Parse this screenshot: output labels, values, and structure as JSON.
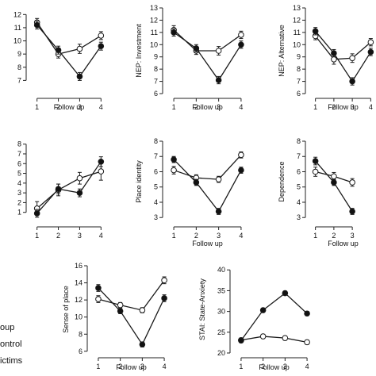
{
  "chart_data": [
    {
      "type": "line",
      "x": [
        1,
        2,
        3,
        4
      ],
      "xlabel": "Follow up",
      "ylabel": "",
      "xticks": [
        "1",
        "2",
        "3",
        "4"
      ],
      "yticks": [
        "7",
        "8",
        "9",
        "10",
        "11",
        "12"
      ],
      "ylim": [
        6,
        12.5
      ],
      "series": [
        {
          "name": "Control",
          "values": [
            11.4,
            9.0,
            9.4,
            10.4
          ],
          "err": [
            0.3,
            0.3,
            0.35,
            0.3
          ]
        },
        {
          "name": "Victims",
          "values": [
            11.2,
            9.3,
            7.3,
            9.6
          ],
          "err": [
            0.3,
            0.3,
            0.3,
            0.3
          ]
        }
      ]
    },
    {
      "type": "line",
      "x": [
        1,
        2,
        3,
        4
      ],
      "xlabel": "Follow up",
      "ylabel": "NEP: Investment",
      "xticks": [
        "1",
        "2",
        "3",
        "4"
      ],
      "yticks": [
        "6",
        "7",
        "8",
        "9",
        "10",
        "11",
        "12",
        "13"
      ],
      "ylim": [
        6,
        13
      ],
      "series": [
        {
          "name": "Control",
          "values": [
            11.2,
            9.5,
            9.5,
            10.8
          ],
          "err": [
            0.35,
            0.3,
            0.35,
            0.3
          ]
        },
        {
          "name": "Victims",
          "values": [
            11.0,
            9.7,
            7.1,
            10.0
          ],
          "err": [
            0.3,
            0.3,
            0.3,
            0.3
          ]
        }
      ]
    },
    {
      "type": "line",
      "x": [
        1,
        2,
        3,
        4
      ],
      "xlabel": "Follow up",
      "ylabel": "NEP: Alternative",
      "xticks": [
        "1",
        "2",
        "3",
        "4"
      ],
      "yticks": [
        "6",
        "7",
        "8",
        "9",
        "10",
        "11",
        "12",
        "13"
      ],
      "ylim": [
        6,
        13
      ],
      "series": [
        {
          "name": "Control",
          "values": [
            10.7,
            8.8,
            8.9,
            10.2
          ],
          "err": [
            0.3,
            0.4,
            0.35,
            0.3
          ]
        },
        {
          "name": "Victims",
          "values": [
            11.1,
            9.3,
            7.0,
            9.4
          ],
          "err": [
            0.3,
            0.3,
            0.3,
            0.3
          ]
        }
      ]
    },
    {
      "type": "line",
      "x": [
        1,
        2,
        3,
        4
      ],
      "xlabel": "",
      "ylabel": "",
      "xticks": [
        "1",
        "2",
        "3",
        "4"
      ],
      "yticks": [
        "1",
        "2",
        "3",
        "4",
        "5",
        "6",
        "7",
        "8"
      ],
      "ylim": [
        0,
        8.3
      ],
      "series": [
        {
          "name": "Control",
          "values": [
            1.4,
            3.3,
            4.5,
            5.2
          ],
          "err": [
            0.7,
            0.6,
            0.6,
            0.9
          ]
        },
        {
          "name": "Victims",
          "values": [
            0.9,
            3.4,
            3.0,
            6.2
          ],
          "err": [
            0.4,
            0.5,
            0.4,
            0.5
          ]
        }
      ]
    },
    {
      "type": "line",
      "x": [
        1,
        2,
        3,
        4
      ],
      "xlabel": "Follow up",
      "ylabel": "Place identity",
      "xticks": [
        "1",
        "2",
        "3",
        "4"
      ],
      "yticks": [
        "3",
        "4",
        "5",
        "6",
        "7",
        "8"
      ],
      "ylim": [
        2.7,
        8
      ],
      "series": [
        {
          "name": "Control",
          "values": [
            6.1,
            5.6,
            5.5,
            7.1
          ],
          "err": [
            0.25,
            0.2,
            0.2,
            0.2
          ]
        },
        {
          "name": "Victims",
          "values": [
            6.8,
            5.3,
            3.4,
            6.1
          ],
          "err": [
            0.2,
            0.2,
            0.2,
            0.2
          ]
        }
      ]
    },
    {
      "type": "line",
      "x": [
        1,
        2,
        3
      ],
      "xlabel": "Follow up",
      "ylabel": "Dependence",
      "xticks": [
        "1",
        "2",
        "3"
      ],
      "yticks": [
        "3",
        "4",
        "5",
        "6",
        "7",
        "8"
      ],
      "ylim": [
        2.7,
        8
      ],
      "series": [
        {
          "name": "Control",
          "values": [
            6.0,
            5.7,
            5.3
          ],
          "err": [
            0.3,
            0.25,
            0.25
          ]
        },
        {
          "name": "Victims",
          "values": [
            6.7,
            5.3,
            3.4
          ],
          "err": [
            0.25,
            0.2,
            0.2
          ]
        }
      ]
    },
    {
      "type": "line",
      "x": [
        1,
        2,
        3,
        4
      ],
      "xlabel": "Follow up",
      "ylabel": "Sense of place",
      "xticks": [
        "1",
        "2",
        "3",
        "4"
      ],
      "yticks": [
        "6",
        "8",
        "10",
        "12",
        "14",
        "16"
      ],
      "ylim": [
        5.8,
        16
      ],
      "series": [
        {
          "name": "Control",
          "values": [
            12.1,
            11.4,
            10.8,
            14.3
          ],
          "err": [
            0.4,
            0.3,
            0.3,
            0.4
          ]
        },
        {
          "name": "Victims",
          "values": [
            13.4,
            10.7,
            6.8,
            12.2
          ],
          "err": [
            0.4,
            0.3,
            0.3,
            0.4
          ]
        }
      ]
    },
    {
      "type": "line",
      "x": [
        1,
        2,
        3,
        4
      ],
      "xlabel": "Follow up",
      "ylabel": "STAI: State-Anxiety",
      "xticks": [
        "1",
        "2",
        "3",
        "4"
      ],
      "yticks": [
        "20",
        "25",
        "30",
        "35",
        "40"
      ],
      "ylim": [
        20,
        41
      ],
      "series": [
        {
          "name": "Control",
          "values": [
            23.1,
            24.0,
            23.6,
            22.6
          ],
          "err": [
            0.5,
            0.5,
            0.5,
            0.5
          ]
        },
        {
          "name": "Victims",
          "values": [
            23.0,
            30.3,
            34.4,
            29.5
          ],
          "err": [
            0.5,
            0.5,
            0.5,
            0.5
          ]
        }
      ]
    }
  ],
  "legend": {
    "title": "oup",
    "items": [
      {
        "label": "ontrol",
        "marker": "open-circle"
      },
      {
        "label": "ictims",
        "marker": "filled-circle"
      }
    ]
  },
  "colors": {
    "line": "#1a1a1a",
    "axis": "#222222",
    "control_fill": "#ffffff",
    "victims_fill": "#111111"
  }
}
